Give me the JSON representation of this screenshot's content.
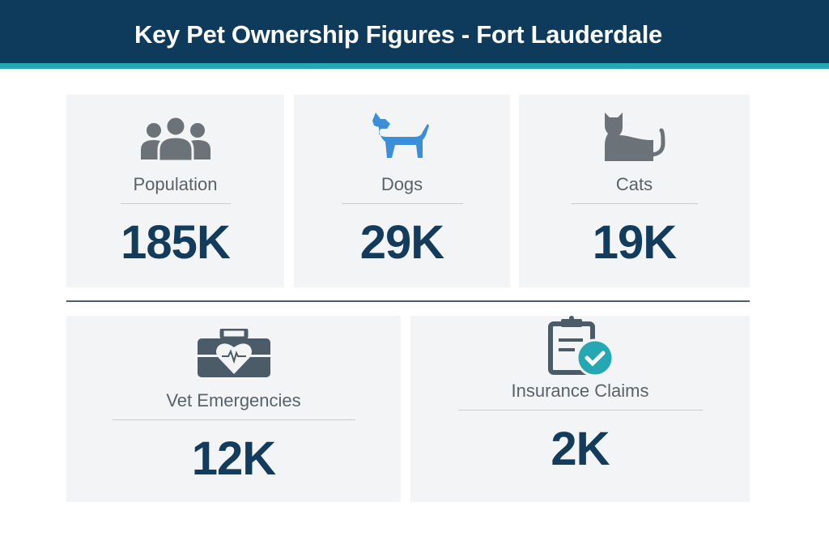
{
  "header": {
    "title": "Key Pet Ownership Figures - Fort Lauderdale"
  },
  "colors": {
    "navy": "#0e3a5b",
    "teal": "#25a7b4",
    "dog_blue": "#3a8fd8",
    "icon_gray": "#6b7278",
    "value": "#123b5c"
  },
  "cards": [
    {
      "label": "Population",
      "value": "185K",
      "icon": "people-icon"
    },
    {
      "label": "Dogs",
      "value": "29K",
      "icon": "dog-icon"
    },
    {
      "label": "Cats",
      "value": "19K",
      "icon": "cat-icon"
    },
    {
      "label": "Vet Emergencies",
      "value": "12K",
      "icon": "medical-briefcase-icon"
    },
    {
      "label": "Insurance Claims",
      "value": "2K",
      "icon": "clipboard-check-icon"
    }
  ]
}
